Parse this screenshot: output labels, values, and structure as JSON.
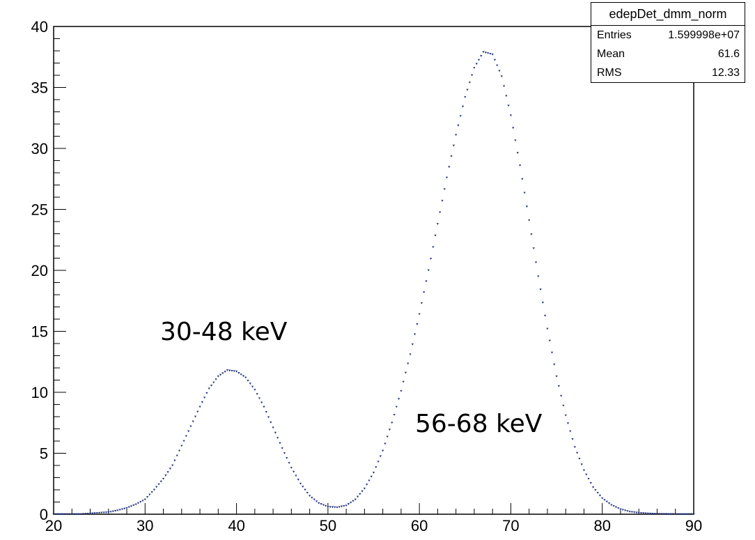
{
  "chart_data": {
    "type": "scatter",
    "title": "",
    "xlabel": "",
    "ylabel": "",
    "xlim": [
      20,
      90
    ],
    "ylim": [
      0,
      40
    ],
    "x_ticks": [
      "20",
      "30",
      "40",
      "50",
      "60",
      "70",
      "80",
      "90"
    ],
    "y_ticks": [
      "0",
      "5",
      "10",
      "15",
      "20",
      "25",
      "30",
      "35",
      "40"
    ],
    "grid": false,
    "series": [
      {
        "color": "#1b2f7a",
        "marker": "small triangle",
        "x": [
          20,
          21,
          22,
          23,
          24,
          25,
          26,
          27,
          28,
          29,
          30,
          31,
          32,
          33,
          34,
          35,
          36,
          37,
          38,
          39,
          40,
          41,
          42,
          43,
          44,
          45,
          46,
          47,
          48,
          49,
          50,
          51,
          52,
          53,
          54,
          55,
          56,
          57,
          58,
          59,
          60,
          61,
          62,
          63,
          64,
          65,
          66,
          67,
          68,
          69,
          70,
          71,
          72,
          73,
          74,
          75,
          76,
          77,
          78,
          79,
          80,
          81,
          82,
          83,
          84,
          85,
          86,
          87,
          88,
          89,
          90
        ],
        "y": [
          0.0,
          0.0,
          0.0,
          0.0,
          0.05,
          0.1,
          0.15,
          0.3,
          0.5,
          0.8,
          1.2,
          2.0,
          2.9,
          4.0,
          5.6,
          7.2,
          8.8,
          10.3,
          11.3,
          11.8,
          11.7,
          11.2,
          10.2,
          8.8,
          7.1,
          5.4,
          3.8,
          2.5,
          1.5,
          0.9,
          0.6,
          0.55,
          0.7,
          1.2,
          2.1,
          3.4,
          5.2,
          7.5,
          10.1,
          13.1,
          16.4,
          20.0,
          23.8,
          27.6,
          31.1,
          34.2,
          36.6,
          37.9,
          37.7,
          35.9,
          32.7,
          28.6,
          24.1,
          19.5,
          15.2,
          11.3,
          8.1,
          5.5,
          3.6,
          2.2,
          1.3,
          0.75,
          0.4,
          0.2,
          0.1,
          0.05,
          0.02,
          0.01,
          0.0,
          0.0,
          0.0
        ]
      }
    ],
    "annotations": [
      "30-48 keV",
      "56-68 keV"
    ]
  },
  "stats_box": {
    "title": "edepDet_dmm_norm",
    "rows": [
      {
        "label": "Entries",
        "value": "1.599998e+07"
      },
      {
        "label": "Mean",
        "value": "61.6"
      },
      {
        "label": "RMS",
        "value": "12.33"
      }
    ]
  }
}
